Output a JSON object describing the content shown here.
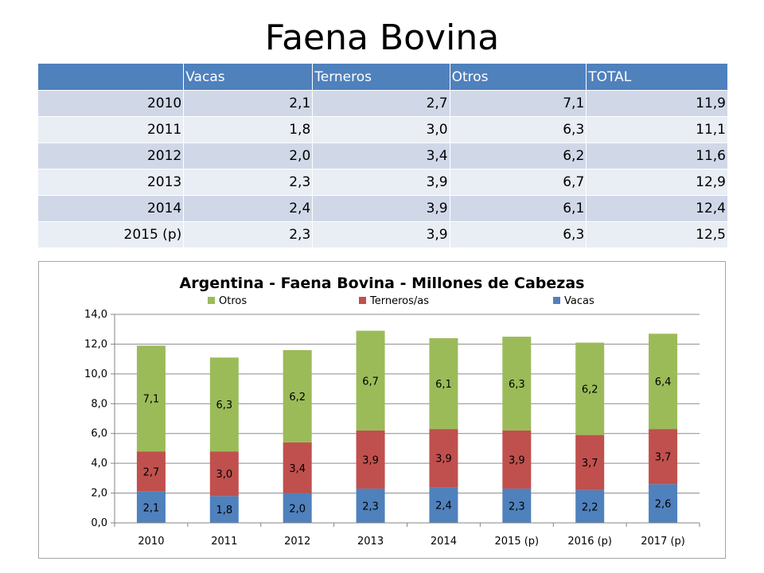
{
  "slide_title": "Faena Bovina",
  "table": {
    "headers": [
      "",
      "Vacas",
      "Terneros",
      "Otros",
      "TOTAL"
    ],
    "rows": [
      [
        "2010",
        "2,1",
        "2,7",
        "7,1",
        "11,9"
      ],
      [
        "2011",
        "1,8",
        "3,0",
        "6,3",
        "11,1"
      ],
      [
        "2012",
        "2,0",
        "3,4",
        "6,2",
        "11,6"
      ],
      [
        "2013",
        "2,3",
        "3,9",
        "6,7",
        "12,9"
      ],
      [
        "2014",
        "2,4",
        "3,9",
        "6,1",
        "12,4"
      ],
      [
        "2015 (p)",
        "2,3",
        "3,9",
        "6,3",
        "12,5"
      ]
    ]
  },
  "chart_data": {
    "type": "bar",
    "stacked": true,
    "title": "Argentina - Faena Bovina - Millones de Cabezas",
    "xlabel": "",
    "ylabel": "",
    "ylim": [
      0,
      14
    ],
    "y_ticks": [
      "0,0",
      "2,0",
      "4,0",
      "6,0",
      "8,0",
      "10,0",
      "12,0",
      "14,0"
    ],
    "grid": true,
    "legend_position": "top",
    "legend_order": [
      "Otros",
      "Terneros/as",
      "Vacas"
    ],
    "categories": [
      "2010",
      "2011",
      "2012",
      "2013",
      "2014",
      "2015 (p)",
      "2016 (p)",
      "2017 (p)"
    ],
    "series": [
      {
        "name": "Vacas",
        "color": "#4f81bd",
        "values": [
          2.1,
          1.8,
          2.0,
          2.3,
          2.4,
          2.3,
          2.2,
          2.6
        ],
        "labels": [
          "2,1",
          "1,8",
          "2,0",
          "2,3",
          "2,4",
          "2,3",
          "2,2",
          "2,6"
        ]
      },
      {
        "name": "Terneros/as",
        "color": "#c0504d",
        "values": [
          2.7,
          3.0,
          3.4,
          3.9,
          3.9,
          3.9,
          3.7,
          3.7
        ],
        "labels": [
          "2,7",
          "3,0",
          "3,4",
          "3,9",
          "3,9",
          "3,9",
          "3,7",
          "3,7"
        ]
      },
      {
        "name": "Otros",
        "color": "#9bbb59",
        "values": [
          7.1,
          6.3,
          6.2,
          6.7,
          6.1,
          6.3,
          6.2,
          6.4
        ],
        "labels": [
          "7,1",
          "6,3",
          "6,2",
          "6,7",
          "6,1",
          "6,3",
          "6,2",
          "6,4"
        ]
      }
    ]
  }
}
